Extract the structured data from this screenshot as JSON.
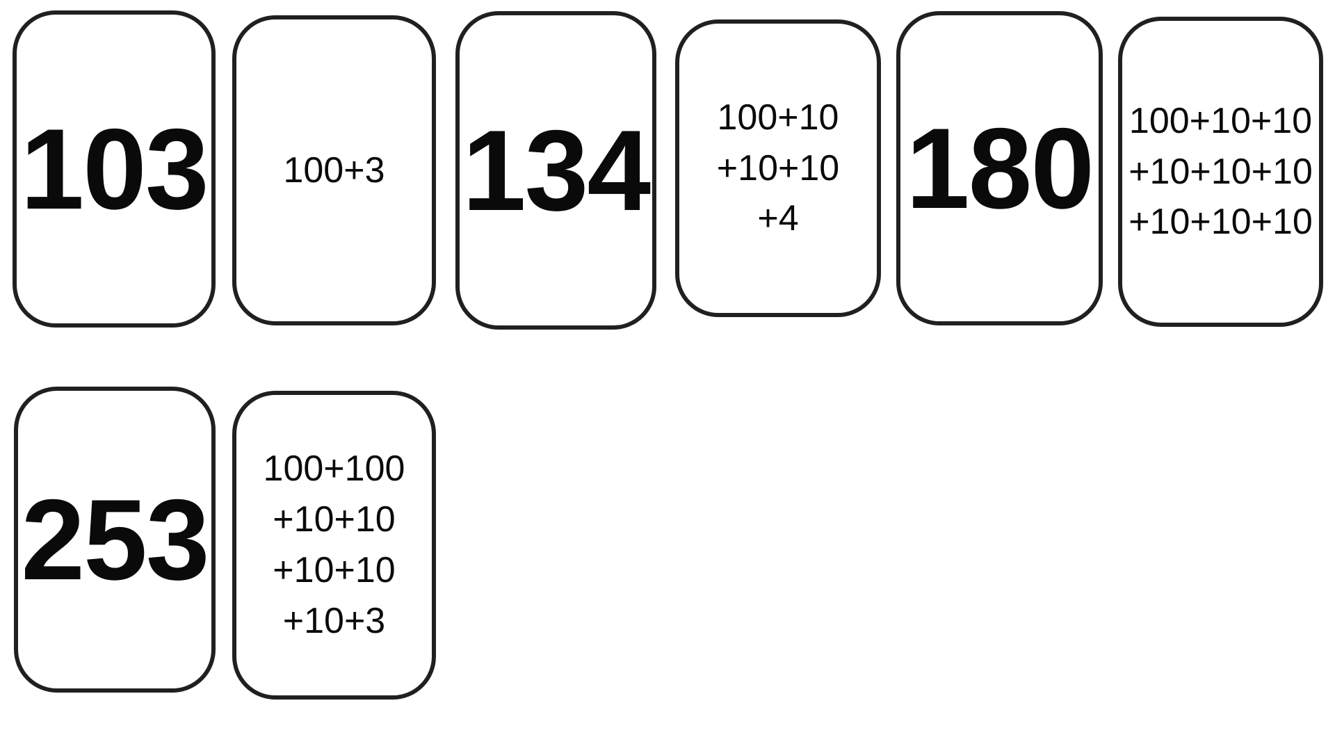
{
  "cards": [
    {
      "text": "103"
    },
    {
      "text": "100+3"
    },
    {
      "text": "134"
    },
    {
      "text": "100+10\n+10+10\n+4"
    },
    {
      "text": "180"
    },
    {
      "text": "100+10+10\n+10+10+10\n+10+10+10"
    },
    {
      "text": "253"
    },
    {
      "text": "100+100\n+10+10\n+10+10\n+10+3"
    }
  ],
  "colors": {
    "page_bg": "#ffffff",
    "card_bg": "#ffffff",
    "card_border": "#231f20",
    "text": "#0b0a0a"
  }
}
